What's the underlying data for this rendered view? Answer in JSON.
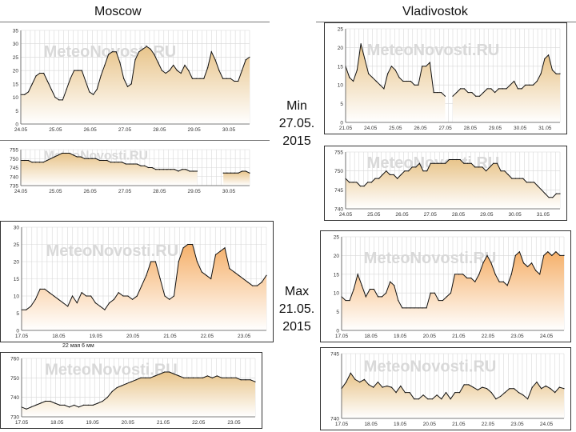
{
  "headers": {
    "left": "Moscow",
    "right": "Vladivostok"
  },
  "min_label": {
    "l1": "Min",
    "l2": "27.05.",
    "l3": "2015"
  },
  "max_label": {
    "l1": "Max",
    "l2": "21.05.",
    "l3": "2015"
  },
  "note": "22 мая 6 мм",
  "watermark": "MeteoNovosti.RU",
  "colors": {
    "fill_top": "#e8c48a",
    "fill_top2": "#f5b06a",
    "fill_bottom": "#ffffff",
    "line": "#111111",
    "grid": "#d8d8d8"
  },
  "chart_data": [
    {
      "id": "moscow-min-temp",
      "type": "area",
      "title": "Moscow",
      "ylim": [
        0,
        35
      ],
      "yticks": [
        "0",
        "5",
        "10",
        "15",
        "20",
        "25",
        "30",
        "35"
      ],
      "xticks": [
        "24.05",
        "25.05",
        "26.05",
        "27.05",
        "28.05",
        "29.05",
        "30.05"
      ],
      "values": [
        11,
        11,
        12,
        15,
        18,
        19,
        19,
        16,
        13,
        10,
        9,
        9,
        13,
        17,
        20,
        20,
        20,
        16,
        12,
        11,
        13,
        18,
        22,
        26,
        27,
        27,
        23,
        17,
        14,
        15,
        24,
        27,
        28,
        29,
        28,
        26,
        23,
        20,
        19,
        20,
        22,
        20,
        19,
        22,
        20,
        17,
        17,
        17,
        17,
        21,
        27,
        24,
        20,
        17,
        17,
        17,
        16,
        16,
        20,
        24,
        25
      ]
    },
    {
      "id": "moscow-min-pressure",
      "type": "area",
      "ylim": [
        735,
        755
      ],
      "yticks": [
        "735",
        "740",
        "745",
        "750",
        "755"
      ],
      "xticks": [
        "24.05",
        "25.05",
        "26.05",
        "27.05",
        "28.05",
        "29.05",
        "30.05"
      ],
      "values": [
        749,
        749,
        749,
        748,
        748,
        748,
        748,
        749,
        750,
        751,
        752,
        753,
        753,
        753,
        752,
        751,
        751,
        750,
        750,
        750,
        750,
        749,
        749,
        749,
        748,
        748,
        748,
        748,
        747,
        747,
        747,
        747,
        746,
        746,
        745,
        745,
        744,
        744,
        744,
        744,
        744,
        744,
        743,
        744,
        744,
        743,
        743,
        743,
        null,
        null,
        null,
        null,
        null,
        null,
        742,
        742,
        742,
        742,
        742,
        743,
        743,
        742
      ]
    },
    {
      "id": "vladivostok-min-temp",
      "type": "area",
      "title": "Vladivostok",
      "ylim": [
        0,
        25
      ],
      "yticks": [
        "0",
        "5",
        "10",
        "15",
        "20",
        "25"
      ],
      "xticks": [
        "21.05",
        "24.05",
        "25.05",
        "26.05",
        "27.05",
        "28.05",
        "29.05",
        "30.05",
        "31.05"
      ],
      "values": [
        15,
        12,
        11,
        14,
        21,
        17,
        13,
        12,
        11,
        10,
        9,
        13,
        15,
        14,
        12,
        11,
        11,
        11,
        10,
        10,
        15,
        15,
        16,
        8,
        8,
        8,
        7,
        null,
        7,
        8,
        9,
        9,
        8,
        8,
        7,
        7,
        8,
        9,
        9,
        8,
        9,
        9,
        9,
        10,
        11,
        9,
        9,
        10,
        10,
        10,
        11,
        13,
        17,
        18,
        14,
        13,
        13
      ]
    },
    {
      "id": "vladivostok-min-pressure",
      "type": "area",
      "ylim": [
        740,
        755
      ],
      "yticks": [
        "740",
        "745",
        "750",
        "755"
      ],
      "xticks": [
        "24.05",
        "25.05",
        "26.05",
        "27.05",
        "28.05",
        "29.05",
        "30.05",
        "31.05"
      ],
      "values": [
        748,
        747,
        747,
        747,
        746,
        746,
        747,
        747,
        748,
        748,
        749,
        750,
        749,
        749,
        748,
        749,
        750,
        750,
        751,
        751,
        752,
        750,
        750,
        752,
        752,
        752,
        752,
        752,
        753,
        753,
        753,
        753,
        752,
        752,
        752,
        751,
        751,
        751,
        750,
        751,
        752,
        752,
        750,
        750,
        749,
        748,
        748,
        748,
        748,
        747,
        747,
        747,
        746,
        745,
        744,
        743,
        743,
        744,
        744
      ]
    },
    {
      "id": "moscow-max-temp",
      "type": "area",
      "ylim": [
        0,
        30
      ],
      "yticks": [
        "0",
        "5",
        "10",
        "15",
        "20",
        "25",
        "30"
      ],
      "xticks": [
        "17.05",
        "18.05",
        "19.05",
        "20.05",
        "21.05",
        "22.05",
        "23.05"
      ],
      "values": [
        6,
        6,
        7,
        9,
        12,
        12,
        11,
        10,
        9,
        8,
        7,
        10,
        8,
        11,
        10,
        10,
        8,
        7,
        6,
        8,
        9,
        11,
        10,
        10,
        9,
        10,
        13,
        16,
        20,
        20,
        15,
        10,
        9,
        10,
        20,
        24,
        25,
        25,
        20,
        17,
        16,
        15,
        22,
        23,
        24,
        18,
        17,
        16,
        15,
        14,
        13,
        13,
        14,
        16
      ]
    },
    {
      "id": "moscow-max-pressure",
      "type": "area",
      "ylim": [
        730,
        760
      ],
      "yticks": [
        "730",
        "740",
        "750",
        "760"
      ],
      "xticks": [
        "17.05",
        "18.05",
        "19.05",
        "20.05",
        "21.05",
        "22.05",
        "23.05"
      ],
      "values": [
        735,
        734,
        735,
        736,
        737,
        738,
        738,
        737,
        736,
        736,
        735,
        736,
        735,
        736,
        736,
        736,
        737,
        738,
        740,
        743,
        745,
        746,
        747,
        748,
        749,
        750,
        750,
        750,
        751,
        752,
        753,
        753,
        752,
        751,
        750,
        750,
        750,
        750,
        750,
        751,
        750,
        751,
        750,
        750,
        750,
        750,
        749,
        749,
        749,
        748
      ]
    },
    {
      "id": "vladivostok-max-temp",
      "type": "area",
      "ylim": [
        0,
        25
      ],
      "yticks": [
        "0",
        "5",
        "10",
        "15",
        "20",
        "25"
      ],
      "xticks": [
        "17.05",
        "18.05",
        "19.05",
        "20.05",
        "21.05",
        "22.05",
        "23.05",
        "24.05"
      ],
      "values": [
        9,
        8,
        8,
        11,
        15,
        12,
        9,
        11,
        11,
        9,
        9,
        10,
        13,
        12,
        8,
        6,
        6,
        6,
        6,
        6,
        6,
        6,
        10,
        10,
        8,
        8,
        9,
        10,
        15,
        15,
        15,
        14,
        14,
        13,
        15,
        18,
        20,
        18,
        15,
        13,
        13,
        12,
        15,
        20,
        21,
        18,
        17,
        18,
        16,
        15,
        20,
        21,
        20,
        21,
        20,
        20
      ]
    },
    {
      "id": "vladivostok-max-pressure",
      "type": "area",
      "ylim": [
        740,
        745
      ],
      "yticks": [
        "740",
        "745"
      ],
      "xticks": [
        "17.05",
        "18.05",
        "19.05",
        "20.05",
        "21.05",
        "22.05",
        "23.05",
        "24.05"
      ],
      "values": [
        742.3,
        742.8,
        743.5,
        743.0,
        742.8,
        743.0,
        742.6,
        742.4,
        742.8,
        742.4,
        742.5,
        742.4,
        742.0,
        742.5,
        742.0,
        742.0,
        741.5,
        741.5,
        741.8,
        741.5,
        741.5,
        741.8,
        741.5,
        742.0,
        741.5,
        742.0,
        742.0,
        742.6,
        742.6,
        742.4,
        742.2,
        742.4,
        742.3,
        742.0,
        741.5,
        741.7,
        742.0,
        742.3,
        742.3,
        742.0,
        741.8,
        741.5,
        742.4,
        742.8,
        742.3,
        742.5,
        742.3,
        742.0,
        742.4,
        742.3
      ]
    }
  ]
}
